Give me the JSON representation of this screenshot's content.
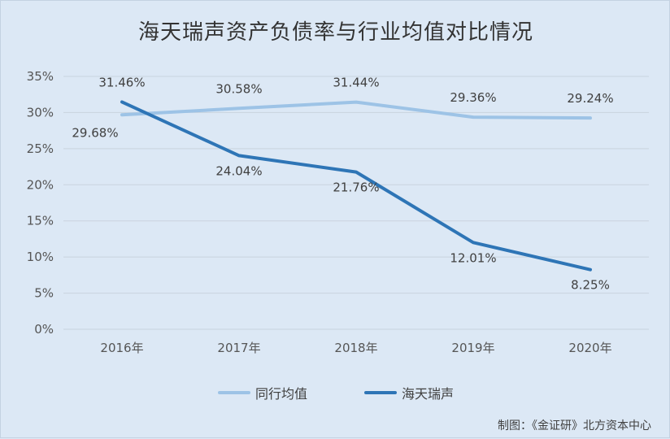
{
  "title": "海天瑞声资产负债率与行业均值对比情况",
  "source": "制图：《金证研》北方资本中心",
  "colors": {
    "industry": "#9dc3e6",
    "company": "#2e75b6",
    "grid": "#c9d3de"
  },
  "chart_data": {
    "type": "line",
    "categories": [
      "2016年",
      "2017年",
      "2018年",
      "2019年",
      "2020年"
    ],
    "ylim": [
      0,
      35
    ],
    "yticks": [
      0,
      5,
      10,
      15,
      20,
      25,
      30,
      35
    ],
    "ytick_labels": [
      "0%",
      "5%",
      "10%",
      "15%",
      "20%",
      "25%",
      "30%",
      "35%"
    ],
    "grid": true,
    "legend_position": "bottom",
    "series": [
      {
        "name": "同行均值",
        "values": [
          29.68,
          30.58,
          31.44,
          29.36,
          29.24
        ],
        "labels": [
          "29.68%",
          "30.58%",
          "31.44%",
          "29.36%",
          "29.24%"
        ]
      },
      {
        "name": "海天瑞声",
        "values": [
          31.46,
          24.04,
          21.76,
          12.01,
          8.25
        ],
        "labels": [
          "31.46%",
          "24.04%",
          "21.76%",
          "12.01%",
          "8.25%"
        ]
      }
    ]
  }
}
